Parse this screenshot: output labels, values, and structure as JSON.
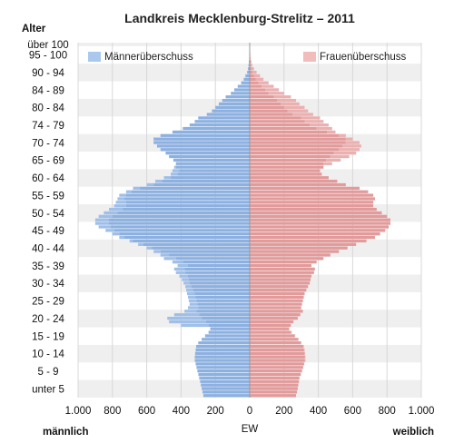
{
  "chart_data": {
    "type": "bar",
    "subtype": "population-pyramid",
    "title": "Landkreis Mecklenburg-Strelitz – 2011",
    "y_axis_title": "Alter",
    "x_axis_title": "EW",
    "left_label": "männlich",
    "right_label": "weiblich",
    "xlim": [
      -1000,
      1000
    ],
    "x_ticks": [
      -1000,
      -800,
      -600,
      -400,
      -200,
      0,
      200,
      400,
      600,
      800,
      1000
    ],
    "x_tick_labels": [
      "1.000",
      "800",
      "600",
      "400",
      "200",
      "0",
      "200",
      "400",
      "600",
      "800",
      "1.000"
    ],
    "age_group_labels": [
      "unter 5",
      "5 - 9",
      "10 - 14",
      "15 - 19",
      "20 - 24",
      "25 - 29",
      "30 - 34",
      "35 - 39",
      "40 - 44",
      "45 - 49",
      "50 - 54",
      "55 - 59",
      "60 - 64",
      "65 - 69",
      "70 - 74",
      "74 - 79",
      "80 - 84",
      "84 - 89",
      "90 - 94",
      "95 - 100",
      "über 100"
    ],
    "legend": {
      "male_surplus": "Männerüberschuss",
      "female_surplus": "Frauenüberschuss"
    },
    "age_unit": "single years, 0 to 100+",
    "ages": [
      0,
      1,
      2,
      3,
      4,
      5,
      6,
      7,
      8,
      9,
      10,
      11,
      12,
      13,
      14,
      15,
      16,
      17,
      18,
      19,
      20,
      21,
      22,
      23,
      24,
      25,
      26,
      27,
      28,
      29,
      30,
      31,
      32,
      33,
      34,
      35,
      36,
      37,
      38,
      39,
      40,
      41,
      42,
      43,
      44,
      45,
      46,
      47,
      48,
      49,
      50,
      51,
      52,
      53,
      54,
      55,
      56,
      57,
      58,
      59,
      60,
      61,
      62,
      63,
      64,
      65,
      66,
      67,
      68,
      69,
      70,
      71,
      72,
      73,
      74,
      75,
      76,
      77,
      78,
      79,
      80,
      81,
      82,
      83,
      84,
      85,
      86,
      87,
      88,
      89,
      90,
      91,
      92,
      93,
      94,
      95,
      96,
      97,
      98,
      99,
      100
    ],
    "series": [
      {
        "name": "männlich",
        "values": [
          270,
          275,
          280,
          285,
          290,
          295,
          300,
          305,
          310,
          315,
          320,
          320,
          318,
          315,
          312,
          300,
          280,
          260,
          240,
          230,
          400,
          470,
          480,
          440,
          380,
          360,
          350,
          355,
          360,
          365,
          370,
          375,
          385,
          395,
          410,
          430,
          440,
          420,
          450,
          500,
          520,
          560,
          600,
          650,
          700,
          760,
          800,
          840,
          880,
          900,
          900,
          880,
          850,
          820,
          790,
          780,
          770,
          760,
          720,
          680,
          600,
          550,
          500,
          460,
          450,
          440,
          430,
          445,
          470,
          490,
          520,
          540,
          560,
          560,
          520,
          450,
          390,
          350,
          320,
          300,
          250,
          220,
          200,
          180,
          160,
          140,
          110,
          90,
          70,
          50,
          35,
          25,
          15,
          10,
          7,
          5,
          3,
          2,
          1,
          1,
          1
        ]
      },
      {
        "name": "weiblich",
        "values": [
          270,
          275,
          280,
          283,
          287,
          290,
          298,
          305,
          312,
          318,
          325,
          325,
          323,
          320,
          315,
          300,
          285,
          265,
          245,
          230,
          240,
          255,
          280,
          295,
          310,
          300,
          305,
          310,
          315,
          320,
          330,
          340,
          350,
          355,
          360,
          375,
          380,
          360,
          390,
          430,
          470,
          520,
          570,
          620,
          680,
          730,
          760,
          790,
          810,
          820,
          820,
          800,
          770,
          740,
          720,
          720,
          730,
          720,
          690,
          640,
          560,
          510,
          460,
          420,
          410,
          430,
          480,
          530,
          580,
          620,
          640,
          650,
          640,
          600,
          560,
          500,
          480,
          460,
          430,
          410,
          370,
          340,
          320,
          290,
          270,
          240,
          200,
          170,
          140,
          110,
          80,
          60,
          40,
          25,
          15,
          10,
          6,
          4,
          3,
          2,
          1
        ]
      }
    ]
  }
}
